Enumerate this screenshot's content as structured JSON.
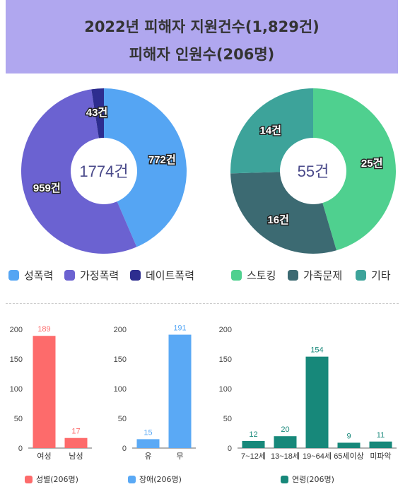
{
  "header": {
    "line1": "2022년 피해자 지원건수(1,829건)",
    "line2": "피해자 인원수(206명)"
  },
  "chart_data": [
    {
      "type": "pie",
      "center_label": "1774건",
      "slices": [
        {
          "name": "성폭력",
          "value": 772,
          "label": "772건",
          "color": "#55a5f3"
        },
        {
          "name": "가정폭력",
          "value": 959,
          "label": "959건",
          "color": "#6b62d1"
        },
        {
          "name": "데이트폭력",
          "value": 43,
          "label": "43건",
          "color": "#2d2d8f"
        }
      ]
    },
    {
      "type": "pie",
      "center_label": "55건",
      "slices": [
        {
          "name": "스토킹",
          "value": 25,
          "label": "25건",
          "color": "#4fd08f"
        },
        {
          "name": "가족문제",
          "value": 16,
          "label": "16건",
          "color": "#3c6a72"
        },
        {
          "name": "기타",
          "value": 14,
          "label": "14건",
          "color": "#3da39a"
        }
      ]
    },
    {
      "type": "bar",
      "legend": "성별(206명)",
      "color": "#fd6b6b",
      "categories": [
        "여성",
        "남성"
      ],
      "values": [
        189,
        17
      ],
      "ylim": [
        0,
        200
      ],
      "yticks": [
        0,
        50,
        100,
        150,
        200
      ]
    },
    {
      "type": "bar",
      "legend": "장애(206명)",
      "color": "#5aa9f5",
      "categories": [
        "유",
        "무"
      ],
      "values": [
        15,
        191
      ],
      "ylim": [
        0,
        200
      ],
      "yticks": [
        0,
        50,
        100,
        150,
        200
      ]
    },
    {
      "type": "bar",
      "legend": "연령(206명)",
      "color": "#17887a",
      "categories": [
        "7~12세",
        "13~18세",
        "19~64세",
        "65세이상",
        "미파악"
      ],
      "values": [
        12,
        20,
        154,
        9,
        11
      ],
      "ylim": [
        0,
        200
      ],
      "yticks": [
        0,
        50,
        100,
        150,
        200
      ]
    }
  ]
}
